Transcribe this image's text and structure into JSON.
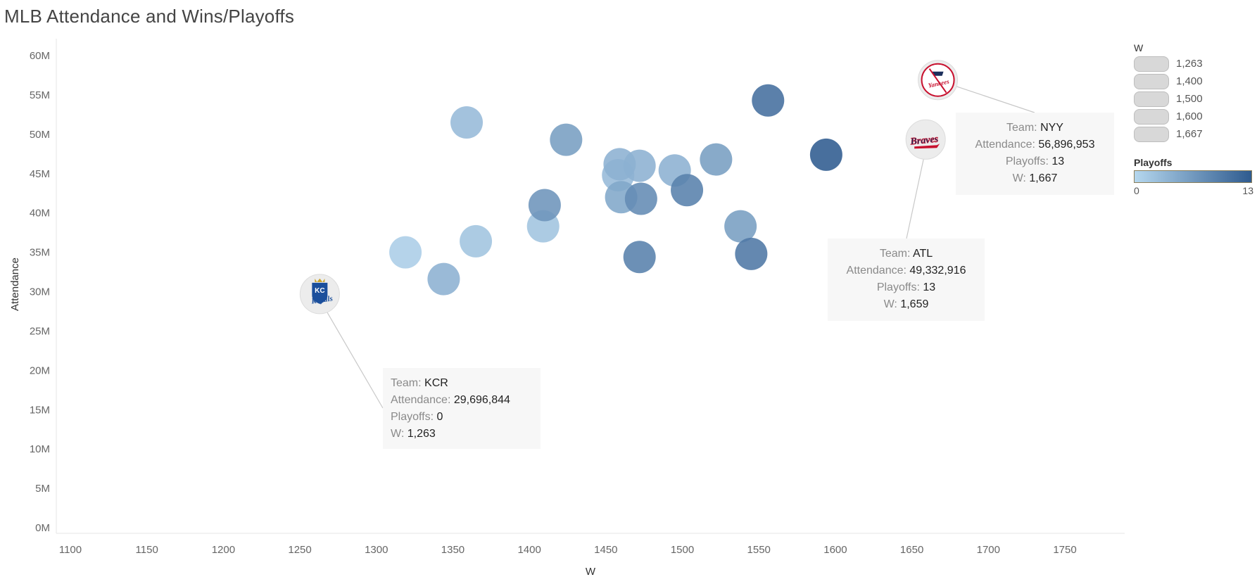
{
  "chart_data": {
    "type": "scatter",
    "title": "MLB Attendance and Wins/Playoffs",
    "xlabel": "W",
    "ylabel": "Attendance",
    "xlim": [
      1090,
      1785
    ],
    "ylim": [
      0,
      61000000
    ],
    "x_ticks": [
      "1100",
      "1150",
      "1200",
      "1250",
      "1300",
      "1350",
      "1400",
      "1450",
      "1500",
      "1550",
      "1600",
      "1650",
      "1700",
      "1750"
    ],
    "y_ticks": [
      "0M",
      "5M",
      "10M",
      "15M",
      "20M",
      "25M",
      "30M",
      "35M",
      "40M",
      "45M",
      "50M",
      "55M",
      "60M"
    ],
    "points": [
      {
        "w": 1263,
        "attendance": 29696844,
        "playoffs": 0,
        "team": "KCR",
        "logo": "royals-logo"
      },
      {
        "w": 1319,
        "attendance": 35000000,
        "playoffs": 1
      },
      {
        "w": 1344,
        "attendance": 31600000,
        "playoffs": 4
      },
      {
        "w": 1359,
        "attendance": 51500000,
        "playoffs": 3
      },
      {
        "w": 1365,
        "attendance": 36400000,
        "playoffs": 2
      },
      {
        "w": 1409,
        "attendance": 38300000,
        "playoffs": 2
      },
      {
        "w": 1410,
        "attendance": 41000000,
        "playoffs": 7
      },
      {
        "w": 1424,
        "attendance": 49300000,
        "playoffs": 6
      },
      {
        "w": 1458,
        "attendance": 44800000,
        "playoffs": 3
      },
      {
        "w": 1459,
        "attendance": 46200000,
        "playoffs": 4
      },
      {
        "w": 1460,
        "attendance": 42000000,
        "playoffs": 5
      },
      {
        "w": 1472,
        "attendance": 46000000,
        "playoffs": 4
      },
      {
        "w": 1472,
        "attendance": 34400000,
        "playoffs": 9
      },
      {
        "w": 1473,
        "attendance": 41800000,
        "playoffs": 8
      },
      {
        "w": 1495,
        "attendance": 45400000,
        "playoffs": 4
      },
      {
        "w": 1503,
        "attendance": 42900000,
        "playoffs": 9
      },
      {
        "w": 1522,
        "attendance": 46800000,
        "playoffs": 6
      },
      {
        "w": 1538,
        "attendance": 38300000,
        "playoffs": 6
      },
      {
        "w": 1545,
        "attendance": 34800000,
        "playoffs": 10
      },
      {
        "w": 1556,
        "attendance": 54300000,
        "playoffs": 11
      },
      {
        "w": 1594,
        "attendance": 47400000,
        "playoffs": 13
      },
      {
        "w": 1659,
        "attendance": 49332916,
        "playoffs": 13,
        "team": "ATL",
        "logo": "braves-logo"
      },
      {
        "w": 1667,
        "attendance": 56896953,
        "playoffs": 13,
        "team": "NYY",
        "logo": "yankees-logo"
      }
    ],
    "size_legend": {
      "title": "W",
      "items": [
        "1,263",
        "1,400",
        "1,500",
        "1,600",
        "1,667"
      ]
    },
    "color_legend": {
      "title": "Playoffs",
      "min": "0",
      "max": "13",
      "color_low": "#b5d7ee",
      "color_high": "#2f5b8f"
    },
    "grid": false
  },
  "tooltips": {
    "kcr": {
      "team_label": "Team:",
      "team": "KCR",
      "attendance_label": "Attendance:",
      "attendance": "29,696,844",
      "playoffs_label": "Playoffs:",
      "playoffs": "0",
      "w_label": "W:",
      "w": "1,263"
    },
    "atl": {
      "team_label": "Team:",
      "team": "ATL",
      "attendance_label": "Attendance:",
      "attendance": "49,332,916",
      "playoffs_label": "Playoffs:",
      "playoffs": "13",
      "w_label": "W:",
      "w": "1,659"
    },
    "nyy": {
      "team_label": "Team:",
      "team": "NYY",
      "attendance_label": "Attendance:",
      "attendance": "56,896,953",
      "playoffs_label": "Playoffs:",
      "playoffs": "13",
      "w_label": "W:",
      "w": "1,667"
    }
  },
  "logos": {
    "royals_text": "Royals",
    "royals_mark": "KC",
    "braves_text": "Braves",
    "yankees_text": "Yankees"
  }
}
